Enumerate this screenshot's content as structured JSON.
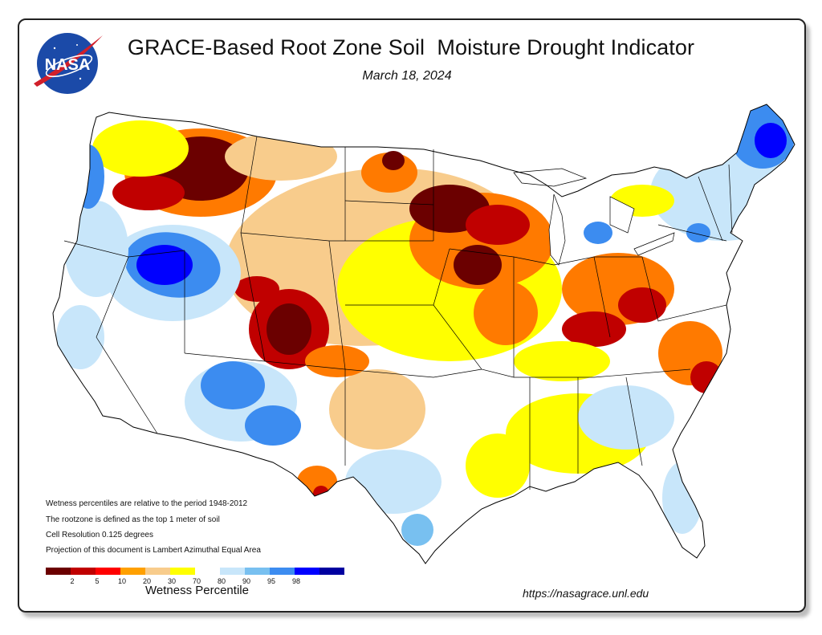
{
  "header": {
    "title": "GRACE-Based Root Zone Soil  Moisture Drought Indicator",
    "date": "March 18, 2024",
    "logo_text": "NASA"
  },
  "notes": [
    "Wetness percentiles are relative to the period 1948-2012",
    "The rootzone is defined as the top 1 meter of soil",
    "Cell Resolution 0.125 degrees",
    "Projection of this document is Lambert Azimuthal Equal Area"
  ],
  "legend": {
    "label": "Wetness Percentile",
    "ticks": [
      "2",
      "5",
      "10",
      "20",
      "30",
      "70",
      "80",
      "90",
      "95",
      "98"
    ],
    "colors": [
      "#6b0000",
      "#c00000",
      "#ff0000",
      "#ffa000",
      "#f8cc8c",
      "#ffff00",
      "#ffffff",
      "#c8e6fa",
      "#78c0f0",
      "#3c8cf0",
      "#0000ff",
      "#0000a0"
    ]
  },
  "footer": {
    "url": "https://nasagrace.unl.edu"
  },
  "map": {
    "palette": {
      "land": "#ffffff",
      "border": "#000000",
      "dry_extreme": "#6b0000",
      "dry_severe": "#c00000",
      "dry_moderate": "#ff7a00",
      "dry_mild": "#f8cc8c",
      "abnormal": "#ffff00",
      "wet_mild": "#c8e6fa",
      "wet_moderate": "#78c0f0",
      "wet_strong": "#3c8cf0",
      "wet_extreme": "#0000ff"
    }
  }
}
